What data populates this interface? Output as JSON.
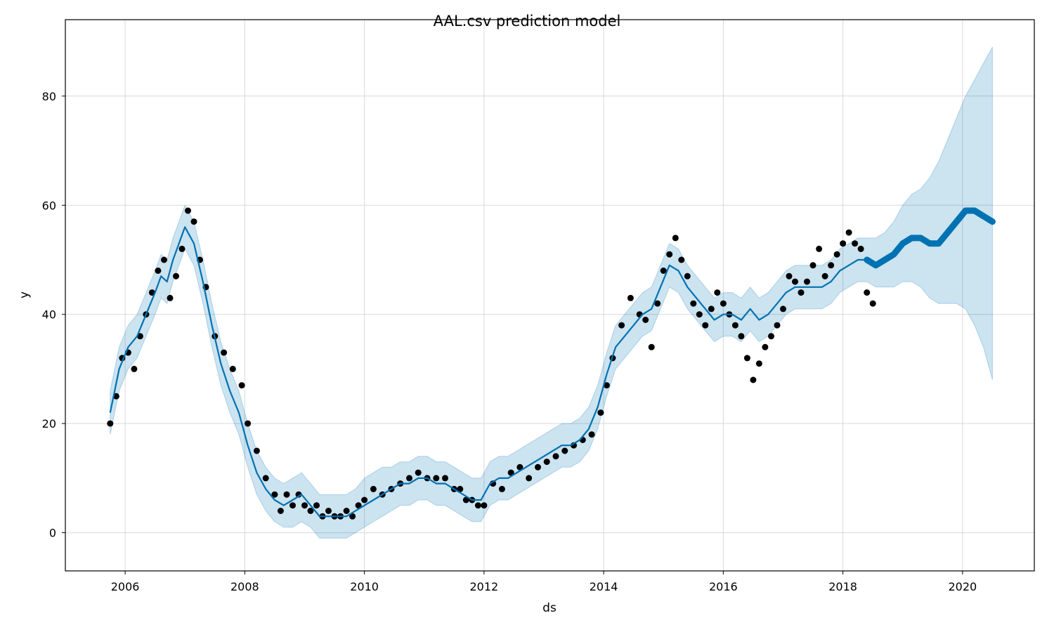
{
  "chart_data": {
    "type": "line",
    "title": "AAL.csv prediction model",
    "xlabel": "ds",
    "ylabel": "y",
    "x_ticks": [
      "2006",
      "2008",
      "2010",
      "2012",
      "2014",
      "2016",
      "2018",
      "2020"
    ],
    "y_ticks": [
      "0",
      "20",
      "40",
      "60",
      "80"
    ],
    "xlim": [
      2005.0,
      2021.2
    ],
    "ylim": [
      -7,
      94
    ],
    "grid": true,
    "colors": {
      "forecast": "#0072B2",
      "band": "#0072B2",
      "observed": "#000000",
      "grid": "#d9d9d9"
    },
    "series": [
      {
        "kind": "observed_points",
        "x": [
          2005.75,
          2005.85,
          2005.95,
          2006.05,
          2006.15,
          2006.25,
          2006.35,
          2006.45,
          2006.55,
          2006.65,
          2006.75,
          2006.85,
          2006.95,
          2007.05,
          2007.15,
          2007.25,
          2007.35,
          2007.5,
          2007.65,
          2007.8,
          2007.95,
          2008.05,
          2008.2,
          2008.35,
          2008.5,
          2008.6,
          2008.7,
          2008.8,
          2008.9,
          2009.0,
          2009.1,
          2009.2,
          2009.3,
          2009.4,
          2009.5,
          2009.6,
          2009.7,
          2009.8,
          2009.9,
          2010.0,
          2010.15,
          2010.3,
          2010.45,
          2010.6,
          2010.75,
          2010.9,
          2011.05,
          2011.2,
          2011.35,
          2011.5,
          2011.6,
          2011.7,
          2011.8,
          2011.9,
          2012.0,
          2012.15,
          2012.3,
          2012.45,
          2012.6,
          2012.75,
          2012.9,
          2013.05,
          2013.2,
          2013.35,
          2013.5,
          2013.65,
          2013.8,
          2013.95,
          2014.05,
          2014.15,
          2014.3,
          2014.45,
          2014.6,
          2014.7,
          2014.8,
          2014.9,
          2015.0,
          2015.1,
          2015.2,
          2015.3,
          2015.4,
          2015.5,
          2015.6,
          2015.7,
          2015.8,
          2015.9,
          2016.0,
          2016.1,
          2016.2,
          2016.3,
          2016.4,
          2016.5,
          2016.6,
          2016.7,
          2016.8,
          2016.9,
          2017.0,
          2017.1,
          2017.2,
          2017.3,
          2017.4,
          2017.5,
          2017.6,
          2017.7,
          2017.8,
          2017.9,
          2018.0,
          2018.1,
          2018.2,
          2018.3,
          2018.4,
          2018.5
        ],
        "y": [
          20,
          25,
          32,
          33,
          30,
          36,
          40,
          44,
          48,
          50,
          43,
          47,
          52,
          59,
          57,
          50,
          45,
          36,
          33,
          30,
          27,
          20,
          15,
          10,
          7,
          4,
          7,
          5,
          7,
          5,
          4,
          5,
          3,
          4,
          3,
          3,
          4,
          3,
          5,
          6,
          8,
          7,
          8,
          9,
          10,
          11,
          10,
          10,
          10,
          8,
          8,
          6,
          6,
          5,
          5,
          9,
          8,
          11,
          12,
          10,
          12,
          13,
          14,
          15,
          16,
          17,
          18,
          22,
          27,
          32,
          38,
          43,
          40,
          39,
          34,
          42,
          48,
          51,
          54,
          50,
          47,
          42,
          40,
          38,
          41,
          44,
          42,
          40,
          38,
          36,
          32,
          28,
          31,
          34,
          36,
          38,
          41,
          47,
          46,
          44,
          46,
          49,
          52,
          47,
          49,
          51,
          53,
          55,
          53,
          52,
          44,
          42
        ]
      },
      {
        "kind": "forecast_line",
        "x": [
          2005.75,
          2005.9,
          2006.05,
          2006.2,
          2006.35,
          2006.5,
          2006.6,
          2006.7,
          2006.8,
          2006.9,
          2007.0,
          2007.15,
          2007.3,
          2007.45,
          2007.6,
          2007.75,
          2007.9,
          2008.05,
          2008.2,
          2008.35,
          2008.5,
          2008.65,
          2008.8,
          2008.95,
          2009.1,
          2009.25,
          2009.4,
          2009.55,
          2009.7,
          2009.85,
          2010.0,
          2010.15,
          2010.3,
          2010.45,
          2010.6,
          2010.75,
          2010.9,
          2011.05,
          2011.2,
          2011.35,
          2011.5,
          2011.65,
          2011.8,
          2011.95,
          2012.1,
          2012.25,
          2012.4,
          2012.55,
          2012.7,
          2012.85,
          2013.0,
          2013.15,
          2013.3,
          2013.45,
          2013.6,
          2013.75,
          2013.9,
          2014.05,
          2014.2,
          2014.35,
          2014.5,
          2014.65,
          2014.8,
          2014.95,
          2015.1,
          2015.25,
          2015.4,
          2015.55,
          2015.7,
          2015.85,
          2016.0,
          2016.15,
          2016.3,
          2016.45,
          2016.6,
          2016.75,
          2016.9,
          2017.05,
          2017.2,
          2017.35,
          2017.5,
          2017.65,
          2017.8,
          2017.95,
          2018.1,
          2018.25,
          2018.4,
          2018.55,
          2018.7,
          2018.85,
          2019.0,
          2019.15,
          2019.3,
          2019.45,
          2019.6,
          2019.75,
          2019.9,
          2020.05,
          2020.2,
          2020.35,
          2020.5
        ],
        "y": [
          22,
          30,
          34,
          36,
          40,
          44,
          47,
          46,
          50,
          53,
          56,
          53,
          46,
          38,
          31,
          26,
          22,
          16,
          11,
          8,
          6,
          5,
          6,
          7,
          5,
          3,
          3,
          3,
          3,
          4,
          5,
          6,
          7,
          8,
          9,
          9,
          10,
          10,
          9,
          9,
          8,
          7,
          6,
          6,
          9,
          10,
          10,
          11,
          12,
          13,
          14,
          15,
          16,
          16,
          17,
          19,
          23,
          29,
          34,
          36,
          38,
          40,
          41,
          45,
          49,
          48,
          45,
          43,
          41,
          39,
          40,
          40,
          39,
          41,
          39,
          40,
          42,
          44,
          45,
          45,
          45,
          45,
          46,
          48,
          49,
          50,
          50,
          49,
          50,
          51,
          53,
          54,
          54,
          53,
          53,
          55,
          57,
          59,
          59,
          58,
          57
        ]
      },
      {
        "kind": "uncertainty_band",
        "x": [
          2005.75,
          2005.9,
          2006.05,
          2006.2,
          2006.35,
          2006.5,
          2006.6,
          2006.7,
          2006.8,
          2006.9,
          2007.0,
          2007.15,
          2007.3,
          2007.45,
          2007.6,
          2007.75,
          2007.9,
          2008.05,
          2008.2,
          2008.35,
          2008.5,
          2008.65,
          2008.8,
          2008.95,
          2009.1,
          2009.25,
          2009.4,
          2009.55,
          2009.7,
          2009.85,
          2010.0,
          2010.15,
          2010.3,
          2010.45,
          2010.6,
          2010.75,
          2010.9,
          2011.05,
          2011.2,
          2011.35,
          2011.5,
          2011.65,
          2011.8,
          2011.95,
          2012.1,
          2012.25,
          2012.4,
          2012.55,
          2012.7,
          2012.85,
          2013.0,
          2013.15,
          2013.3,
          2013.45,
          2013.6,
          2013.75,
          2013.9,
          2014.05,
          2014.2,
          2014.35,
          2014.5,
          2014.65,
          2014.8,
          2014.95,
          2015.1,
          2015.25,
          2015.4,
          2015.55,
          2015.7,
          2015.85,
          2016.0,
          2016.15,
          2016.3,
          2016.45,
          2016.6,
          2016.75,
          2016.9,
          2017.05,
          2017.2,
          2017.35,
          2017.5,
          2017.65,
          2017.8,
          2017.95,
          2018.1,
          2018.25,
          2018.4,
          2018.55,
          2018.7,
          2018.85,
          2019.0,
          2019.15,
          2019.3,
          2019.45,
          2019.6,
          2019.75,
          2019.9,
          2020.05,
          2020.2,
          2020.35,
          2020.5
        ],
        "lower": [
          18,
          26,
          30,
          32,
          36,
          40,
          43,
          42,
          46,
          49,
          52,
          49,
          42,
          34,
          27,
          22,
          18,
          12,
          7,
          4,
          2,
          1,
          1,
          2,
          1,
          -1,
          -1,
          -1,
          -1,
          0,
          1,
          2,
          3,
          4,
          5,
          5,
          6,
          6,
          5,
          5,
          4,
          3,
          2,
          2,
          5,
          6,
          6,
          7,
          8,
          9,
          10,
          11,
          12,
          12,
          13,
          15,
          19,
          25,
          30,
          32,
          34,
          36,
          37,
          41,
          45,
          44,
          41,
          39,
          37,
          35,
          36,
          36,
          35,
          37,
          35,
          36,
          38,
          40,
          41,
          41,
          41,
          41,
          42,
          44,
          45,
          46,
          46,
          45,
          45,
          45,
          46,
          46,
          45,
          43,
          42,
          42,
          42,
          41,
          38,
          34,
          28
        ],
        "upper": [
          26,
          34,
          38,
          40,
          44,
          48,
          51,
          50,
          54,
          57,
          60,
          57,
          50,
          42,
          35,
          30,
          26,
          20,
          15,
          12,
          10,
          9,
          10,
          11,
          9,
          7,
          7,
          7,
          7,
          8,
          10,
          11,
          12,
          12,
          13,
          13,
          14,
          14,
          13,
          13,
          12,
          11,
          10,
          10,
          13,
          14,
          14,
          15,
          16,
          17,
          18,
          19,
          20,
          20,
          21,
          23,
          27,
          33,
          38,
          40,
          42,
          44,
          45,
          49,
          53,
          52,
          49,
          47,
          45,
          43,
          44,
          44,
          43,
          45,
          43,
          44,
          46,
          48,
          49,
          49,
          49,
          49,
          50,
          52,
          53,
          54,
          54,
          54,
          55,
          57,
          60,
          62,
          63,
          65,
          68,
          72,
          76,
          80,
          83,
          86,
          89
        ]
      }
    ]
  }
}
